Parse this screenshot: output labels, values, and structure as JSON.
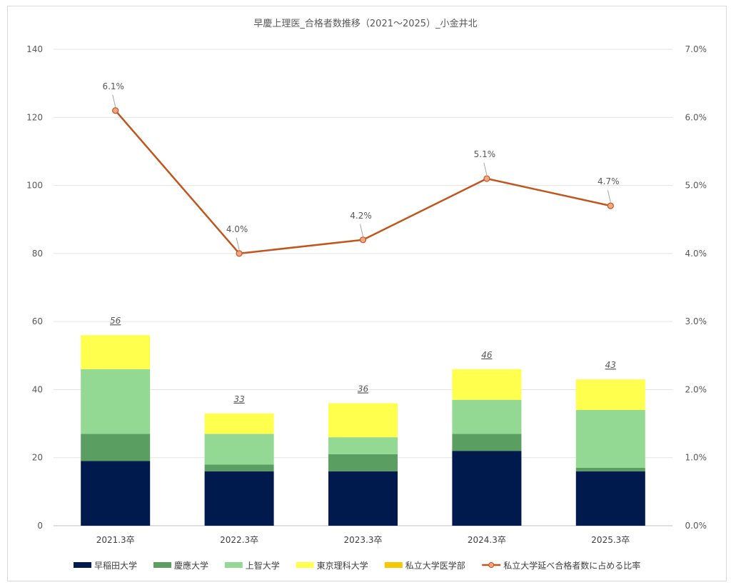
{
  "chart_data": {
    "type": "bar",
    "title": "早慶上理医_合格者数推移（2021～2025）_小金井北",
    "categories": [
      "2021.3卒",
      "2022.3卒",
      "2023.3卒",
      "2024.3卒",
      "2025.3卒"
    ],
    "series": [
      {
        "name": "早稲田大学",
        "values": [
          19,
          16,
          16,
          22,
          16
        ],
        "color": "#001a4d"
      },
      {
        "name": "慶應大学",
        "values": [
          8,
          2,
          5,
          5,
          1
        ],
        "color": "#5a9e62"
      },
      {
        "name": "上智大学",
        "values": [
          19,
          9,
          5,
          10,
          17
        ],
        "color": "#93d993"
      },
      {
        "name": "東京理科大学",
        "values": [
          10,
          6,
          10,
          9,
          9
        ],
        "color": "#ffff4d"
      },
      {
        "name": "私立大学医学部",
        "values": [
          0,
          0,
          0,
          0,
          0
        ],
        "color": "#f5c800"
      }
    ],
    "totals": [
      "56",
      "33",
      "36",
      "46",
      "43"
    ],
    "line_series": {
      "name": "私立大学延べ合格者数に占める比率",
      "values": [
        6.1,
        4.0,
        4.2,
        5.1,
        4.7
      ],
      "labels": [
        "6.1%",
        "4.0%",
        "4.2%",
        "5.1%",
        "4.7%"
      ],
      "color": "#c0561d",
      "marker_fill": "#f4a582"
    },
    "y_left": {
      "min": 0,
      "max": 140,
      "step": 20,
      "ticks": [
        "0",
        "20",
        "40",
        "60",
        "80",
        "100",
        "120",
        "140"
      ]
    },
    "y_right": {
      "min": 0,
      "max": 7,
      "step": 1,
      "ticks": [
        "0.0%",
        "1.0%",
        "2.0%",
        "3.0%",
        "4.0%",
        "5.0%",
        "6.0%",
        "7.0%"
      ]
    },
    "grid": true,
    "legend_position": "bottom"
  }
}
